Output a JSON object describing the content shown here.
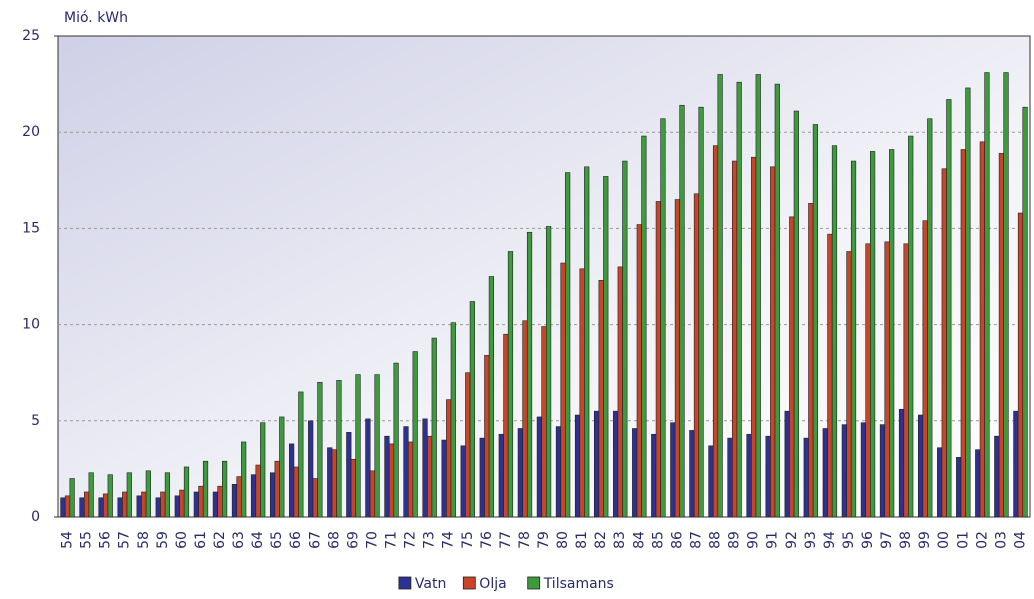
{
  "chart_data": {
    "type": "bar",
    "ylabel": "Mió. kWh",
    "categories": [
      "54",
      "55",
      "56",
      "57",
      "58",
      "59",
      "60",
      "61",
      "62",
      "63",
      "64",
      "65",
      "66",
      "67",
      "68",
      "69",
      "70",
      "71",
      "72",
      "73",
      "74",
      "75",
      "76",
      "77",
      "78",
      "79",
      "80",
      "81",
      "82",
      "83",
      "84",
      "85",
      "86",
      "87",
      "88",
      "89",
      "90",
      "91",
      "92",
      "93",
      "94",
      "95",
      "96",
      "97",
      "98",
      "99",
      "00",
      "01",
      "02",
      "03",
      "04"
    ],
    "series": [
      {
        "name": "Vatn",
        "color": "#2e3192",
        "values": [
          1.0,
          1.0,
          1.0,
          1.0,
          1.1,
          1.0,
          1.1,
          1.3,
          1.3,
          1.7,
          2.2,
          2.3,
          3.8,
          5.0,
          3.6,
          4.4,
          5.1,
          4.2,
          4.7,
          5.1,
          4.0,
          3.7,
          4.1,
          4.3,
          4.6,
          5.2,
          4.7,
          5.3,
          5.5,
          5.5,
          4.6,
          4.3,
          4.9,
          4.5,
          3.7,
          4.1,
          4.3,
          4.2,
          5.5,
          4.1,
          4.6,
          4.8,
          4.9,
          4.8,
          5.6,
          5.3,
          3.6,
          3.1,
          3.5,
          4.2,
          5.5
        ]
      },
      {
        "name": "Olja",
        "color": "#c8452a",
        "values": [
          1.1,
          1.3,
          1.2,
          1.3,
          1.3,
          1.3,
          1.4,
          1.6,
          1.6,
          2.1,
          2.7,
          2.9,
          2.6,
          2.0,
          3.5,
          3.0,
          2.4,
          3.8,
          3.9,
          4.2,
          6.1,
          7.5,
          8.4,
          9.5,
          10.2,
          9.9,
          13.2,
          12.9,
          12.3,
          13.0,
          15.2,
          16.4,
          16.5,
          16.8,
          19.3,
          18.5,
          18.7,
          18.2,
          15.6,
          16.3,
          14.7,
          13.8,
          14.2,
          14.3,
          14.2,
          15.4,
          18.1,
          19.1,
          19.5,
          18.9,
          15.8
        ]
      },
      {
        "name": "Tilsamans",
        "color": "#3d9b3d",
        "values": [
          2.0,
          2.3,
          2.2,
          2.3,
          2.4,
          2.3,
          2.6,
          2.9,
          2.9,
          3.9,
          4.9,
          5.2,
          6.5,
          7.0,
          7.1,
          7.4,
          7.4,
          8.0,
          8.6,
          9.3,
          10.1,
          11.2,
          12.5,
          13.8,
          14.8,
          15.1,
          17.9,
          18.2,
          17.7,
          18.5,
          19.8,
          20.7,
          21.4,
          21.3,
          23.0,
          22.6,
          23.0,
          22.5,
          21.1,
          20.4,
          19.3,
          18.5,
          19.0,
          19.1,
          19.8,
          20.7,
          21.7,
          22.3,
          23.1,
          23.1,
          21.3
        ]
      }
    ],
    "ylim": [
      0,
      25
    ],
    "yticks": [
      0,
      5,
      10,
      15,
      20,
      25
    ],
    "grid": true,
    "legend": "bottom"
  }
}
